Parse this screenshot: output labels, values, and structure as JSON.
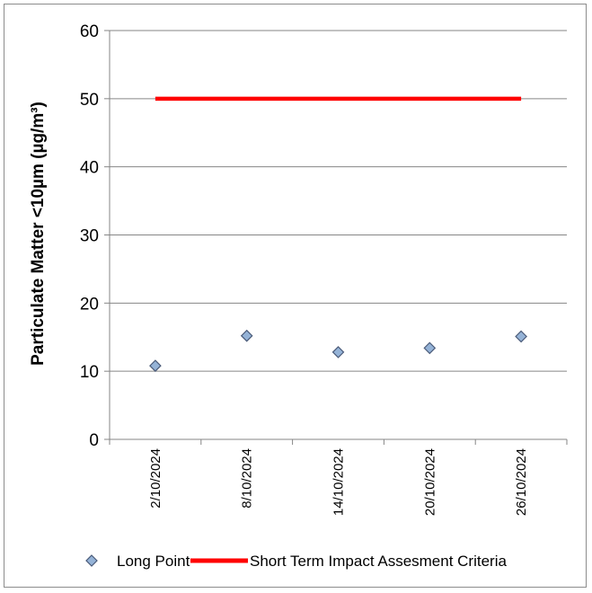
{
  "chart_data": {
    "type": "scatter",
    "title": "",
    "xlabel": "",
    "ylabel": "Particulate Matter <10µm (µg/m³)",
    "ylim": [
      0,
      60
    ],
    "yticks": [
      0,
      10,
      20,
      30,
      40,
      50,
      60
    ],
    "categories": [
      "2/10/2024",
      "8/10/2024",
      "14/10/2024",
      "20/10/2024",
      "26/10/2024"
    ],
    "grid": true,
    "legend_position": "bottom",
    "series": [
      {
        "name": "Long Point",
        "kind": "marker",
        "marker": "diamond",
        "color": "#95b3d7",
        "values": [
          10.8,
          15.2,
          12.8,
          13.4,
          15.1
        ]
      },
      {
        "name": "Short Term Impact Assesment Criteria",
        "kind": "line",
        "color": "#ff0000",
        "values": [
          50,
          50,
          50,
          50,
          50
        ]
      }
    ]
  }
}
